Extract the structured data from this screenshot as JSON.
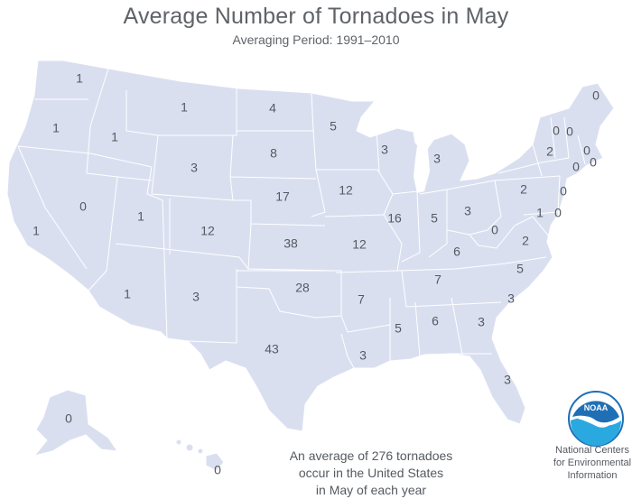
{
  "header": {
    "title": "Average Number of Tornadoes in May",
    "subtitle": "Averaging Period:  1991–2010"
  },
  "states": [
    {
      "id": "WA",
      "value": "1"
    },
    {
      "id": "OR",
      "value": "1"
    },
    {
      "id": "ID",
      "value": "1"
    },
    {
      "id": "MT",
      "value": "1"
    },
    {
      "id": "ND",
      "value": "4"
    },
    {
      "id": "MN",
      "value": "5"
    },
    {
      "id": "WI",
      "value": "3"
    },
    {
      "id": "MI",
      "value": "3"
    },
    {
      "id": "ME",
      "value": "0"
    },
    {
      "id": "VT",
      "value": "0"
    },
    {
      "id": "NH",
      "value": "0"
    },
    {
      "id": "MA",
      "value": "0"
    },
    {
      "id": "CT",
      "value": "0"
    },
    {
      "id": "RI",
      "value": "0"
    },
    {
      "id": "NY",
      "value": "2"
    },
    {
      "id": "NJ",
      "value": "0"
    },
    {
      "id": "PA",
      "value": "2"
    },
    {
      "id": "MD",
      "value": "1"
    },
    {
      "id": "DE",
      "value": "0"
    },
    {
      "id": "WY",
      "value": "3"
    },
    {
      "id": "SD",
      "value": "8"
    },
    {
      "id": "NE",
      "value": "17"
    },
    {
      "id": "IA",
      "value": "12"
    },
    {
      "id": "IL",
      "value": "16"
    },
    {
      "id": "IN",
      "value": "5"
    },
    {
      "id": "OH",
      "value": "3"
    },
    {
      "id": "WV",
      "value": "0"
    },
    {
      "id": "VA",
      "value": "2"
    },
    {
      "id": "NV",
      "value": "0"
    },
    {
      "id": "UT",
      "value": "1"
    },
    {
      "id": "CO",
      "value": "12"
    },
    {
      "id": "KS",
      "value": "38"
    },
    {
      "id": "MO",
      "value": "12"
    },
    {
      "id": "KY",
      "value": "6"
    },
    {
      "id": "CA",
      "value": "1"
    },
    {
      "id": "AZ",
      "value": "1"
    },
    {
      "id": "NM",
      "value": "3"
    },
    {
      "id": "OK",
      "value": "28"
    },
    {
      "id": "AR",
      "value": "7"
    },
    {
      "id": "TN",
      "value": "7"
    },
    {
      "id": "NC",
      "value": "5"
    },
    {
      "id": "SC",
      "value": "3"
    },
    {
      "id": "MS",
      "value": "5"
    },
    {
      "id": "AL",
      "value": "6"
    },
    {
      "id": "GA",
      "value": "3"
    },
    {
      "id": "TX",
      "value": "43"
    },
    {
      "id": "LA",
      "value": "3"
    },
    {
      "id": "FL",
      "value": "3"
    },
    {
      "id": "AK",
      "value": "0"
    },
    {
      "id": "HI",
      "value": "0"
    }
  ],
  "footnote": {
    "line1": "An average of 276 tornadoes",
    "line2": "occur in the United States",
    "line3": "in May of each year"
  },
  "logo": {
    "text": "NOAA",
    "org_line1": "National Centers",
    "org_line2": "for Environmental",
    "org_line3": "Information"
  },
  "colors": {
    "land": "#dadff0",
    "noaa_blue": "#1f6fb5",
    "noaa_light": "#2aa9e0"
  }
}
